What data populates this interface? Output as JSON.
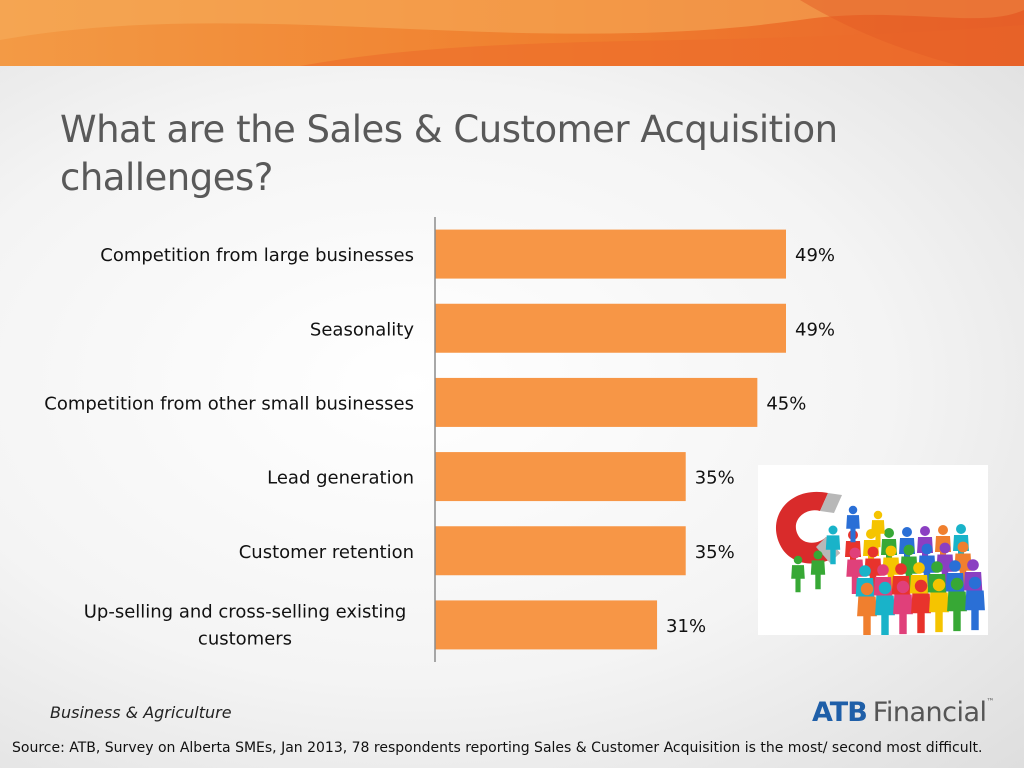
{
  "slide": {
    "title_line1": "What are the Sales & Customer Acquisition",
    "title_line2": "challenges?",
    "footer_left": "Business & Agriculture",
    "source": "Source:  ATB, Survey on Alberta SMEs, Jan 2013, 78 respondents reporting Sales & Customer Acquisition is the most/ second most difficult.",
    "logo": {
      "bold": "ATB",
      "regular": "Financial",
      "tm": "™"
    }
  },
  "colors": {
    "bar": "#F79646",
    "banner": "#F07F2E",
    "title": "#595959",
    "logo_blue": "#1F5FA8"
  },
  "picture": {
    "icon": "magnet-attracting-people-icon"
  },
  "chart_data": {
    "type": "bar",
    "orientation": "horizontal",
    "categories": [
      [
        "Competition from large businesses"
      ],
      [
        "Seasonality"
      ],
      [
        "Competition from other small businesses"
      ],
      [
        "Lead generation"
      ],
      [
        "Customer retention"
      ],
      [
        "Up-selling and cross-selling existing",
        "customers"
      ]
    ],
    "values": [
      49,
      49,
      45,
      35,
      35,
      31
    ],
    "data_labels": [
      "49%",
      "49%",
      "45%",
      "35%",
      "35%",
      "31%"
    ],
    "value_unit": "%",
    "xlim": [
      0,
      60
    ],
    "grid": false,
    "legend": "none"
  }
}
